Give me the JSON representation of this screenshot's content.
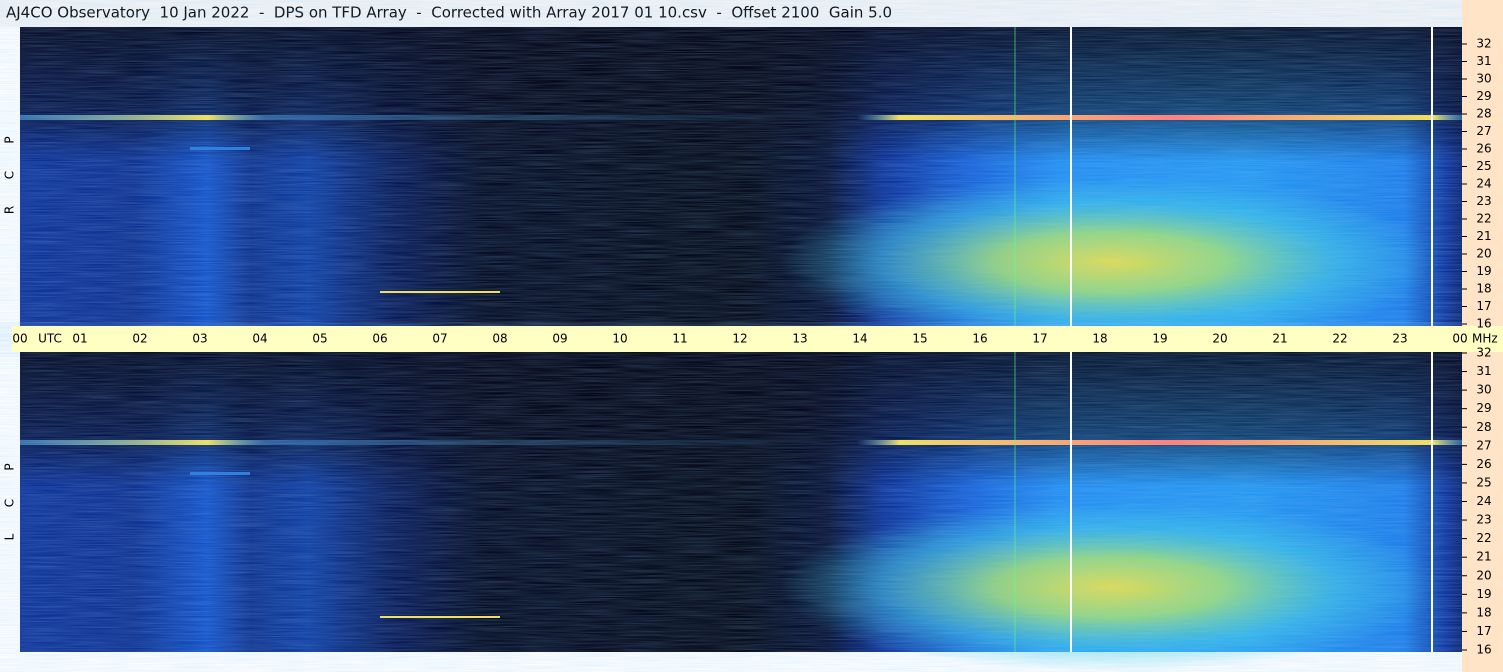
{
  "header": {
    "title": "AJ4CO Observatory  10 Jan 2022  -  DPS on TFD Array  -  Corrected with Array 2017 01 10.csv  -  Offset 2100  Gain 5.0"
  },
  "panels": [
    {
      "letters": [
        "R",
        "C",
        "P"
      ]
    },
    {
      "letters": [
        "L",
        "C",
        "P"
      ]
    }
  ],
  "time_axis": {
    "labels": [
      "00",
      "UTC",
      "01",
      "02",
      "03",
      "04",
      "05",
      "06",
      "07",
      "08",
      "09",
      "10",
      "11",
      "12",
      "13",
      "14",
      "15",
      "16",
      "17",
      "18",
      "19",
      "20",
      "21",
      "22",
      "23",
      "00"
    ]
  },
  "freq_axis": {
    "unit": "MHz",
    "labels": [
      32,
      31,
      30,
      29,
      28,
      27,
      26,
      25,
      24,
      23,
      22,
      21,
      20,
      19,
      18,
      17,
      16
    ]
  }
}
